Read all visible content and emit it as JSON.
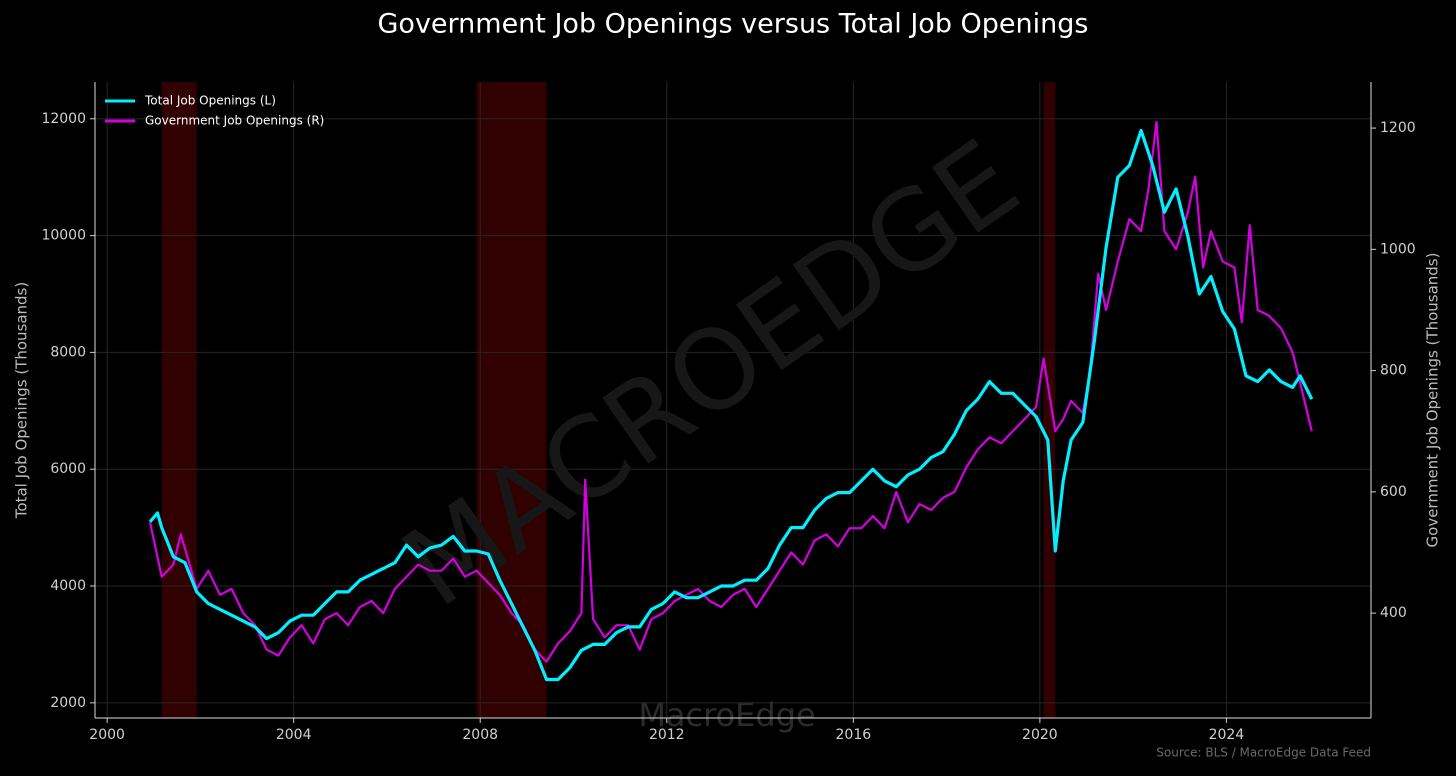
{
  "chart_data": {
    "type": "line",
    "title": "Government Job Openings versus Total Job Openings",
    "ylabel": "Total Job Openings (Thousands)",
    "y2label": "Government Job Openings (Thousands)",
    "source": "Source: BLS / MacroEdge Data Feed",
    "watermark": "MACROEDGE",
    "brand": "MacroEdge",
    "xlim": [
      1999.74,
      2027.1
    ],
    "xticks": [
      2000,
      2004,
      2008,
      2012,
      2016,
      2020,
      2024
    ],
    "ylim": [
      1740,
      12630
    ],
    "yticks": [
      2000,
      4000,
      6000,
      8000,
      10000,
      12000
    ],
    "y2lim": [
      227,
      1276
    ],
    "y2ticks": [
      400,
      600,
      800,
      1000,
      1200
    ],
    "grid": true,
    "legend": "upper left",
    "shaded_periods": [
      [
        2001.17,
        2001.92
      ],
      [
        2007.92,
        2009.42
      ],
      [
        2020.08,
        2020.33
      ]
    ],
    "shade_color": "#3a0000",
    "series": [
      {
        "name": "Total Job Openings (L)",
        "color": "#00f0ff",
        "axis": "y",
        "x": [
          2000.92,
          2001.08,
          2001.17,
          2001.42,
          2001.67,
          2001.92,
          2002.17,
          2002.42,
          2002.67,
          2002.92,
          2003.17,
          2003.42,
          2003.67,
          2003.92,
          2004.17,
          2004.42,
          2004.67,
          2004.92,
          2005.17,
          2005.42,
          2005.67,
          2005.92,
          2006.17,
          2006.42,
          2006.67,
          2006.92,
          2007.17,
          2007.42,
          2007.67,
          2007.92,
          2008.17,
          2008.42,
          2008.67,
          2008.92,
          2009.17,
          2009.42,
          2009.67,
          2009.92,
          2010.17,
          2010.42,
          2010.67,
          2010.92,
          2011.17,
          2011.42,
          2011.67,
          2011.92,
          2012.17,
          2012.42,
          2012.67,
          2012.92,
          2013.17,
          2013.42,
          2013.67,
          2013.92,
          2014.17,
          2014.42,
          2014.67,
          2014.92,
          2015.17,
          2015.42,
          2015.67,
          2015.92,
          2016.17,
          2016.42,
          2016.67,
          2016.92,
          2017.17,
          2017.42,
          2017.67,
          2017.92,
          2018.17,
          2018.42,
          2018.67,
          2018.92,
          2019.17,
          2019.42,
          2019.67,
          2019.92,
          2020.17,
          2020.33,
          2020.5,
          2020.67,
          2020.92,
          2021.17,
          2021.42,
          2021.67,
          2021.92,
          2022.17,
          2022.42,
          2022.67,
          2022.92,
          2023.17,
          2023.42,
          2023.67,
          2023.92,
          2024.17,
          2024.42,
          2024.67,
          2024.92,
          2025.17,
          2025.42,
          2025.58,
          2025.83
        ],
        "values": [
          5100,
          5250,
          5000,
          4500,
          4400,
          3900,
          3700,
          3600,
          3500,
          3400,
          3300,
          3100,
          3200,
          3400,
          3500,
          3500,
          3700,
          3900,
          3900,
          4100,
          4200,
          4300,
          4400,
          4700,
          4500,
          4650,
          4700,
          4850,
          4600,
          4600,
          4550,
          4100,
          3700,
          3300,
          2900,
          2400,
          2400,
          2600,
          2900,
          3000,
          3000,
          3200,
          3300,
          3300,
          3600,
          3700,
          3900,
          3800,
          3800,
          3900,
          4000,
          4000,
          4100,
          4100,
          4300,
          4700,
          5000,
          5000,
          5300,
          5500,
          5600,
          5600,
          5800,
          6000,
          5800,
          5700,
          5900,
          6000,
          6200,
          6300,
          6600,
          7000,
          7200,
          7500,
          7300,
          7300,
          7100,
          6900,
          6500,
          4600,
          5800,
          6500,
          6800,
          8200,
          9800,
          11000,
          11200,
          11800,
          11200,
          10400,
          10800,
          10000,
          9000,
          9300,
          8700,
          8400,
          7600,
          7500,
          7700,
          7500,
          7400,
          7600,
          7200
        ]
      },
      {
        "name": "Government Job Openings (R)",
        "color": "#d400e0",
        "axis": "y2",
        "x": [
          2000.92,
          2001.17,
          2001.42,
          2001.58,
          2001.92,
          2002.17,
          2002.42,
          2002.67,
          2002.92,
          2003.17,
          2003.42,
          2003.67,
          2003.92,
          2004.17,
          2004.42,
          2004.67,
          2004.92,
          2005.17,
          2005.42,
          2005.67,
          2005.92,
          2006.17,
          2006.42,
          2006.67,
          2006.92,
          2007.17,
          2007.42,
          2007.67,
          2007.92,
          2008.17,
          2008.42,
          2008.67,
          2008.92,
          2009.17,
          2009.42,
          2009.67,
          2009.92,
          2010.17,
          2010.25,
          2010.42,
          2010.67,
          2010.92,
          2011.17,
          2011.42,
          2011.67,
          2011.92,
          2012.17,
          2012.42,
          2012.67,
          2012.92,
          2013.17,
          2013.42,
          2013.67,
          2013.92,
          2014.17,
          2014.42,
          2014.67,
          2014.92,
          2015.17,
          2015.42,
          2015.67,
          2015.92,
          2016.17,
          2016.42,
          2016.67,
          2016.92,
          2017.17,
          2017.42,
          2017.67,
          2017.92,
          2018.17,
          2018.42,
          2018.67,
          2018.92,
          2019.17,
          2019.42,
          2019.67,
          2019.92,
          2020.08,
          2020.33,
          2020.5,
          2020.67,
          2020.92,
          2021.08,
          2021.25,
          2021.42,
          2021.67,
          2021.92,
          2022.17,
          2022.33,
          2022.5,
          2022.67,
          2022.92,
          2023.17,
          2023.33,
          2023.5,
          2023.67,
          2023.92,
          2024.17,
          2024.33,
          2024.5,
          2024.67,
          2024.92,
          2025.17,
          2025.42,
          2025.58,
          2025.83
        ],
        "values": [
          550,
          460,
          480,
          530,
          440,
          470,
          430,
          440,
          400,
          380,
          340,
          330,
          360,
          380,
          350,
          390,
          400,
          380,
          410,
          420,
          400,
          440,
          460,
          480,
          470,
          470,
          490,
          460,
          470,
          450,
          430,
          400,
          380,
          340,
          320,
          350,
          370,
          400,
          620,
          390,
          360,
          380,
          380,
          340,
          390,
          400,
          420,
          430,
          440,
          420,
          410,
          430,
          440,
          410,
          440,
          470,
          500,
          480,
          520,
          530,
          510,
          540,
          540,
          560,
          540,
          600,
          550,
          580,
          570,
          590,
          600,
          640,
          670,
          690,
          680,
          700,
          720,
          740,
          820,
          700,
          720,
          750,
          730,
          800,
          960,
          900,
          980,
          1050,
          1030,
          1100,
          1210,
          1030,
          1000,
          1060,
          1120,
          970,
          1030,
          980,
          970,
          880,
          1040,
          900,
          890,
          870,
          830,
          780,
          700
        ]
      }
    ]
  }
}
